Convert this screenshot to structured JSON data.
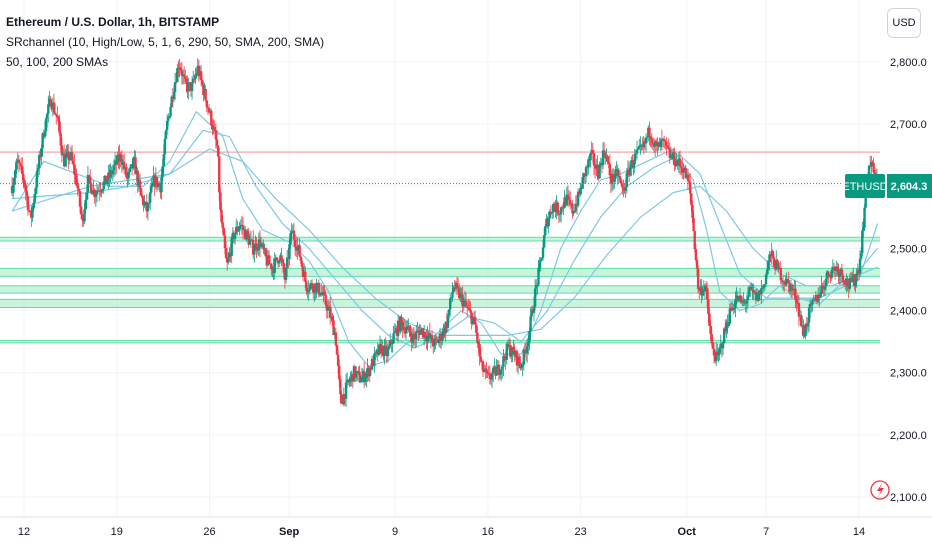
{
  "legend": {
    "title": "Ethereum / U.S. Dollar, 1h, BITSTAMP",
    "indicator1": "SRchannel (10, High/Low, 5, 1, 6, 290, 50, SMA, 200, SMA)",
    "indicator2": "50, 100, 200 SMAs"
  },
  "currency_button": "USD",
  "price_badge": {
    "symbol": "ETHUSD",
    "value": "2,604.3",
    "color": "#089981"
  },
  "colors": {
    "up": "#089981",
    "down": "#f23645",
    "sma": "#7ec8e3",
    "zone": "#b4f0cf",
    "zone_line": "#5ee0a6",
    "resistance": "#f8b4b4"
  },
  "icon": "lightning-icon",
  "chart_data": {
    "type": "candlestick",
    "title": "Ethereum / U.S. Dollar, 1h, BITSTAMP",
    "ylim": [
      2080,
      2880
    ],
    "y_ticks": [
      {
        "value": 2800,
        "label": "2,800.0"
      },
      {
        "value": 2700,
        "label": "2,700.0"
      },
      {
        "value": 2600,
        "label": "2,600.0"
      },
      {
        "value": 2500,
        "label": "2,500.0"
      },
      {
        "value": 2400,
        "label": "2,400.0"
      },
      {
        "value": 2300,
        "label": "2,300.0"
      },
      {
        "value": 2200,
        "label": "2,200.0"
      },
      {
        "value": 2100,
        "label": "2,100.0"
      }
    ],
    "x_ticks": [
      {
        "day": 12,
        "label": "12",
        "bold": false
      },
      {
        "day": 19,
        "label": "19",
        "bold": false
      },
      {
        "day": 26,
        "label": "26",
        "bold": false
      },
      {
        "day": 32,
        "label": "Sep",
        "bold": true
      },
      {
        "day": 40,
        "label": "9",
        "bold": false
      },
      {
        "day": 47,
        "label": "16",
        "bold": false
      },
      {
        "day": 54,
        "label": "23",
        "bold": false
      },
      {
        "day": 62,
        "label": "Oct",
        "bold": true
      },
      {
        "day": 68,
        "label": "7",
        "bold": false
      },
      {
        "day": 75,
        "label": "14",
        "bold": false
      }
    ],
    "last_price": 2604.3,
    "resistance_level": 2655,
    "support_zones": [
      [
        2512,
        2518
      ],
      [
        2455,
        2468
      ],
      [
        2428,
        2440
      ],
      [
        2405,
        2418
      ],
      [
        2348,
        2352
      ]
    ],
    "close_path": [
      [
        11.1,
        2600
      ],
      [
        11.5,
        2640
      ],
      [
        12.0,
        2610
      ],
      [
        12.5,
        2545
      ],
      [
        13.0,
        2620
      ],
      [
        13.5,
        2690
      ],
      [
        14.0,
        2740
      ],
      [
        14.5,
        2710
      ],
      [
        15.0,
        2640
      ],
      [
        15.5,
        2650
      ],
      [
        16.0,
        2605
      ],
      [
        16.4,
        2540
      ],
      [
        16.8,
        2610
      ],
      [
        17.3,
        2590
      ],
      [
        17.8,
        2600
      ],
      [
        18.3,
        2610
      ],
      [
        18.8,
        2630
      ],
      [
        19.3,
        2650
      ],
      [
        19.8,
        2610
      ],
      [
        20.3,
        2640
      ],
      [
        20.8,
        2585
      ],
      [
        21.3,
        2560
      ],
      [
        21.8,
        2610
      ],
      [
        22.3,
        2600
      ],
      [
        22.8,
        2700
      ],
      [
        23.3,
        2760
      ],
      [
        23.7,
        2800
      ],
      [
        24.2,
        2760
      ],
      [
        24.7,
        2760
      ],
      [
        25.1,
        2790
      ],
      [
        25.6,
        2750
      ],
      [
        26.1,
        2710
      ],
      [
        26.6,
        2660
      ],
      [
        26.8,
        2560
      ],
      [
        27.3,
        2470
      ],
      [
        27.8,
        2520
      ],
      [
        28.3,
        2540
      ],
      [
        28.8,
        2520
      ],
      [
        29.3,
        2500
      ],
      [
        29.8,
        2510
      ],
      [
        30.3,
        2480
      ],
      [
        30.8,
        2470
      ],
      [
        31.3,
        2490
      ],
      [
        31.7,
        2450
      ],
      [
        32.2,
        2530
      ],
      [
        32.8,
        2490
      ],
      [
        33.3,
        2440
      ],
      [
        33.9,
        2440
      ],
      [
        34.4,
        2430
      ],
      [
        35.0,
        2400
      ],
      [
        35.5,
        2360
      ],
      [
        35.9,
        2250
      ],
      [
        36.4,
        2280
      ],
      [
        36.9,
        2300
      ],
      [
        37.4,
        2290
      ],
      [
        37.9,
        2300
      ],
      [
        38.4,
        2320
      ],
      [
        38.9,
        2340
      ],
      [
        39.4,
        2330
      ],
      [
        39.9,
        2360
      ],
      [
        40.4,
        2380
      ],
      [
        40.9,
        2370
      ],
      [
        41.4,
        2355
      ],
      [
        41.9,
        2370
      ],
      [
        42.4,
        2360
      ],
      [
        43.0,
        2345
      ],
      [
        43.5,
        2360
      ],
      [
        43.9,
        2380
      ],
      [
        44.4,
        2440
      ],
      [
        45.0,
        2420
      ],
      [
        45.5,
        2400
      ],
      [
        46.0,
        2380
      ],
      [
        46.5,
        2310
      ],
      [
        47.0,
        2290
      ],
      [
        47.5,
        2300
      ],
      [
        48.0,
        2310
      ],
      [
        48.5,
        2340
      ],
      [
        49.0,
        2330
      ],
      [
        49.5,
        2310
      ],
      [
        50.0,
        2350
      ],
      [
        50.5,
        2420
      ],
      [
        51.0,
        2480
      ],
      [
        51.4,
        2540
      ],
      [
        51.9,
        2570
      ],
      [
        52.4,
        2560
      ],
      [
        52.9,
        2580
      ],
      [
        53.4,
        2560
      ],
      [
        53.8,
        2580
      ],
      [
        54.3,
        2620
      ],
      [
        54.8,
        2650
      ],
      [
        55.3,
        2620
      ],
      [
        55.8,
        2660
      ],
      [
        56.3,
        2610
      ],
      [
        56.8,
        2620
      ],
      [
        57.2,
        2590
      ],
      [
        57.7,
        2630
      ],
      [
        58.2,
        2650
      ],
      [
        58.7,
        2660
      ],
      [
        59.2,
        2690
      ],
      [
        59.7,
        2660
      ],
      [
        60.2,
        2670
      ],
      [
        60.7,
        2650
      ],
      [
        61.2,
        2640
      ],
      [
        61.7,
        2630
      ],
      [
        62.2,
        2600
      ],
      [
        62.4,
        2560
      ],
      [
        62.9,
        2430
      ],
      [
        63.4,
        2440
      ],
      [
        63.9,
        2340
      ],
      [
        64.3,
        2320
      ],
      [
        64.8,
        2360
      ],
      [
        65.3,
        2400
      ],
      [
        65.8,
        2420
      ],
      [
        66.3,
        2410
      ],
      [
        66.8,
        2430
      ],
      [
        67.3,
        2420
      ],
      [
        67.8,
        2440
      ],
      [
        68.3,
        2490
      ],
      [
        68.8,
        2470
      ],
      [
        69.3,
        2450
      ],
      [
        69.8,
        2440
      ],
      [
        70.3,
        2420
      ],
      [
        70.8,
        2360
      ],
      [
        71.3,
        2400
      ],
      [
        71.8,
        2420
      ],
      [
        72.3,
        2440
      ],
      [
        72.7,
        2460
      ],
      [
        73.2,
        2470
      ],
      [
        73.7,
        2460
      ],
      [
        74.2,
        2440
      ],
      [
        74.7,
        2450
      ],
      [
        75.0,
        2470
      ],
      [
        75.2,
        2510
      ],
      [
        75.4,
        2560
      ],
      [
        75.6,
        2620
      ],
      [
        75.9,
        2640
      ],
      [
        76.2,
        2610
      ],
      [
        76.4,
        2604.3
      ]
    ],
    "series": [
      {
        "name": "SMA 50",
        "values": [
          [
            11.1,
            2560
          ],
          [
            13.5,
            2640
          ],
          [
            16.0,
            2620
          ],
          [
            18.5,
            2600
          ],
          [
            21.0,
            2600
          ],
          [
            23.0,
            2640
          ],
          [
            25.0,
            2720
          ],
          [
            27.0,
            2680
          ],
          [
            28.5,
            2580
          ],
          [
            30.0,
            2530
          ],
          [
            32.0,
            2510
          ],
          [
            33.5,
            2480
          ],
          [
            35.0,
            2430
          ],
          [
            36.5,
            2350
          ],
          [
            38.0,
            2310
          ],
          [
            39.5,
            2320
          ],
          [
            41.0,
            2350
          ],
          [
            43.0,
            2360
          ],
          [
            45.0,
            2400
          ],
          [
            46.5,
            2380
          ],
          [
            48.0,
            2330
          ],
          [
            49.5,
            2330
          ],
          [
            51.0,
            2400
          ],
          [
            52.5,
            2500
          ],
          [
            54.0,
            2560
          ],
          [
            55.5,
            2610
          ],
          [
            57.0,
            2620
          ],
          [
            59.0,
            2640
          ],
          [
            61.0,
            2660
          ],
          [
            62.5,
            2610
          ],
          [
            63.5,
            2530
          ],
          [
            64.5,
            2430
          ],
          [
            66.0,
            2400
          ],
          [
            67.5,
            2410
          ],
          [
            69.0,
            2440
          ],
          [
            70.5,
            2420
          ],
          [
            72.0,
            2410
          ],
          [
            73.5,
            2440
          ],
          [
            75.0,
            2450
          ],
          [
            76.4,
            2540
          ]
        ]
      },
      {
        "name": "SMA 100",
        "values": [
          [
            11.1,
            2560
          ],
          [
            14.0,
            2580
          ],
          [
            17.0,
            2600
          ],
          [
            20.0,
            2610
          ],
          [
            23.0,
            2620
          ],
          [
            25.5,
            2690
          ],
          [
            27.5,
            2680
          ],
          [
            29.5,
            2600
          ],
          [
            31.5,
            2540
          ],
          [
            33.5,
            2500
          ],
          [
            35.5,
            2450
          ],
          [
            37.5,
            2400
          ],
          [
            39.5,
            2360
          ],
          [
            41.5,
            2340
          ],
          [
            43.5,
            2360
          ],
          [
            45.5,
            2390
          ],
          [
            47.5,
            2380
          ],
          [
            49.5,
            2350
          ],
          [
            51.5,
            2400
          ],
          [
            53.5,
            2480
          ],
          [
            55.5,
            2550
          ],
          [
            57.5,
            2600
          ],
          [
            59.5,
            2630
          ],
          [
            61.5,
            2650
          ],
          [
            63.0,
            2620
          ],
          [
            64.5,
            2540
          ],
          [
            66.0,
            2460
          ],
          [
            68.0,
            2420
          ],
          [
            70.0,
            2420
          ],
          [
            72.0,
            2420
          ],
          [
            74.0,
            2440
          ],
          [
            76.4,
            2500
          ]
        ]
      },
      {
        "name": "SMA 200",
        "values": [
          [
            11.1,
            2580
          ],
          [
            14.0,
            2585
          ],
          [
            17.0,
            2590
          ],
          [
            20.0,
            2600
          ],
          [
            23.0,
            2620
          ],
          [
            26.0,
            2660
          ],
          [
            28.5,
            2640
          ],
          [
            31.0,
            2580
          ],
          [
            33.5,
            2530
          ],
          [
            36.0,
            2470
          ],
          [
            38.5,
            2420
          ],
          [
            41.0,
            2380
          ],
          [
            43.5,
            2360
          ],
          [
            46.0,
            2360
          ],
          [
            48.5,
            2360
          ],
          [
            51.0,
            2370
          ],
          [
            53.5,
            2420
          ],
          [
            56.0,
            2490
          ],
          [
            58.5,
            2550
          ],
          [
            61.0,
            2590
          ],
          [
            63.0,
            2600
          ],
          [
            65.0,
            2560
          ],
          [
            67.0,
            2500
          ],
          [
            69.0,
            2460
          ],
          [
            71.0,
            2440
          ],
          [
            73.0,
            2440
          ],
          [
            76.4,
            2470
          ]
        ]
      }
    ]
  }
}
